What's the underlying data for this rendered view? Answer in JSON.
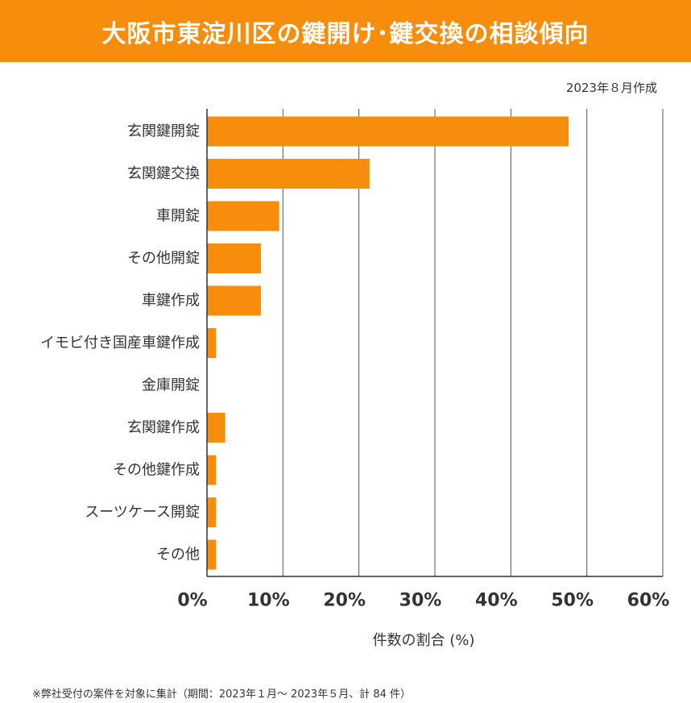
{
  "header": {
    "title": "大阪市東淀川区の鍵開け･鍵交換の相談傾向",
    "date_note": "2023年８月作成"
  },
  "chart_data": {
    "type": "bar",
    "orientation": "horizontal",
    "categories": [
      "玄関鍵開錠",
      "玄関鍵交換",
      "車開錠",
      "その他開錠",
      "車鍵作成",
      "イモビ付き国産車鍵作成",
      "金庫開錠",
      "玄関鍵作成",
      "その他鍵作成",
      "スーツケース開錠",
      "その他"
    ],
    "values": [
      47.6,
      21.4,
      9.5,
      7.1,
      7.1,
      1.2,
      0,
      2.4,
      1.2,
      1.2,
      1.2
    ],
    "xticks": [
      "0%",
      "10%",
      "20%",
      "30%",
      "40%",
      "50%",
      "60%"
    ],
    "xlim": [
      0,
      60
    ],
    "xlabel": "件数の割合 (%)",
    "ylabel": "",
    "grid": true,
    "colors": {
      "bar": "#f78d0d",
      "grid": "#555555",
      "text": "#333333"
    }
  },
  "footnote": "※弊社受付の案件を対象に集計（期間：2023年１月～ 2023年５月、計 84 件）"
}
